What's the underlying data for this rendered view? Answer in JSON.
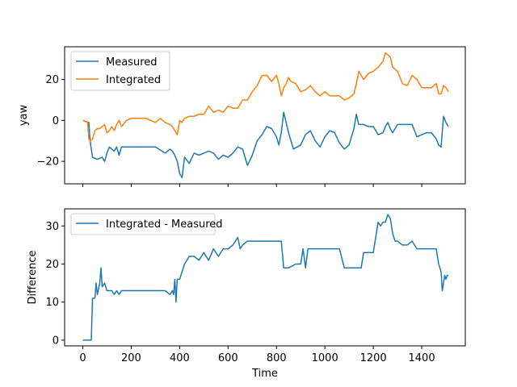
{
  "chart_data": [
    {
      "type": "line",
      "title": "",
      "xlabel": "",
      "ylabel": "yaw",
      "xlim": [
        -75,
        1580
      ],
      "ylim": [
        -31,
        36
      ],
      "x_ticks": [
        0,
        200,
        400,
        600,
        800,
        1000,
        1200,
        1400
      ],
      "y_ticks": [
        -20,
        0,
        20
      ],
      "x_tick_labels_visible": false,
      "grid": false,
      "legend_position": "top-left",
      "series": [
        {
          "name": "Measured",
          "color": "#1f77b4",
          "x": [
            0,
            25,
            30,
            40,
            60,
            80,
            90,
            100,
            110,
            120,
            130,
            140,
            150,
            160,
            180,
            200,
            220,
            250,
            300,
            340,
            360,
            370,
            380,
            390,
            400,
            410,
            420,
            440,
            460,
            480,
            500,
            520,
            540,
            560,
            580,
            600,
            620,
            640,
            660,
            680,
            700,
            720,
            740,
            760,
            780,
            800,
            810,
            820,
            830,
            850,
            870,
            900,
            920,
            940,
            960,
            980,
            1000,
            1020,
            1040,
            1060,
            1080,
            1100,
            1110,
            1120,
            1130,
            1140,
            1160,
            1180,
            1200,
            1220,
            1240,
            1250,
            1260,
            1270,
            1280,
            1300,
            1320,
            1340,
            1360,
            1380,
            1400,
            1420,
            1440,
            1460,
            1470,
            1480,
            1490,
            1500,
            1510
          ],
          "y": [
            0,
            -1,
            -10,
            -18,
            -19,
            -18,
            -20,
            -16,
            -13,
            -14,
            -15,
            -13,
            -17,
            -13,
            -13,
            -13,
            -13,
            -13,
            -13,
            -16,
            -14,
            -15,
            -17,
            -20,
            -26,
            -28,
            -18,
            -21,
            -16,
            -17,
            -16,
            -15,
            -16,
            -19,
            -17,
            -18,
            -16,
            -13,
            -14,
            -22,
            -17,
            -10,
            -7,
            -3,
            -4,
            -8,
            -12,
            -6,
            4,
            -6,
            -14,
            -12,
            -7,
            -5,
            -10,
            -13,
            -8,
            -5,
            -6,
            -11,
            -14,
            -12,
            -8,
            -4,
            3,
            -2,
            -2,
            -3,
            -3,
            -7,
            -6,
            -3,
            -1,
            -4,
            -6,
            -2,
            -2,
            -2,
            -2,
            -8,
            -7,
            -6,
            -6,
            -9,
            -12,
            -13,
            2,
            -1,
            -3
          ]
        },
        {
          "name": "Integrated",
          "color": "#ff7f0e",
          "x": [
            0,
            20,
            25,
            30,
            40,
            50,
            60,
            70,
            80,
            90,
            100,
            110,
            120,
            130,
            140,
            150,
            160,
            180,
            200,
            220,
            240,
            260,
            280,
            300,
            320,
            340,
            360,
            370,
            380,
            390,
            400,
            410,
            420,
            440,
            460,
            480,
            500,
            520,
            540,
            560,
            580,
            600,
            620,
            640,
            660,
            680,
            700,
            720,
            740,
            760,
            780,
            800,
            810,
            820,
            830,
            840,
            850,
            860,
            880,
            900,
            920,
            940,
            960,
            980,
            1000,
            1020,
            1040,
            1060,
            1080,
            1100,
            1110,
            1120,
            1130,
            1140,
            1160,
            1180,
            1200,
            1220,
            1240,
            1250,
            1260,
            1270,
            1280,
            1300,
            1320,
            1340,
            1360,
            1380,
            1400,
            1420,
            1440,
            1460,
            1470,
            1480,
            1490,
            1500,
            1510
          ],
          "y": [
            0,
            -1,
            -9,
            -10,
            -9,
            -5,
            -4,
            -4,
            -3,
            -2,
            -6,
            -5,
            -3,
            -5,
            -2,
            0,
            -3,
            0,
            1,
            1,
            1,
            1,
            0,
            -1,
            1,
            -1,
            -2,
            -3,
            -5,
            -7,
            0,
            -1,
            1,
            2,
            2,
            3,
            3,
            7,
            4,
            5,
            4,
            7,
            6,
            6,
            10,
            10,
            14,
            17,
            22,
            22,
            19,
            22,
            18,
            12,
            16,
            18,
            21,
            19,
            18,
            14,
            15,
            17,
            14,
            12,
            14,
            12,
            12,
            12,
            10,
            11,
            12,
            13,
            18,
            24,
            20,
            23,
            24,
            26,
            29,
            33,
            32,
            31,
            26,
            24,
            18,
            17,
            22,
            20,
            16,
            16,
            16,
            18,
            13,
            13,
            17,
            16,
            14
          ]
        }
      ]
    },
    {
      "type": "line",
      "title": "",
      "xlabel": "Time",
      "ylabel": "Difference",
      "xlim": [
        -75,
        1580
      ],
      "ylim": [
        -1.5,
        34.5
      ],
      "x_ticks": [
        0,
        200,
        400,
        600,
        800,
        1000,
        1200,
        1400
      ],
      "x_tick_labels": [
        "0",
        "200",
        "400",
        "600",
        "800",
        "1000",
        "1200",
        "1400"
      ],
      "y_ticks": [
        0,
        10,
        20,
        30
      ],
      "y_tick_labels": [
        "0",
        "10",
        "20",
        "30"
      ],
      "grid": false,
      "legend_position": "top-left",
      "series": [
        {
          "name": "Integrated - Measured",
          "color": "#1f77b4",
          "x": [
            0,
            20,
            25,
            30,
            35,
            40,
            50,
            55,
            60,
            70,
            75,
            80,
            90,
            100,
            110,
            120,
            130,
            140,
            150,
            160,
            180,
            200,
            250,
            300,
            340,
            360,
            370,
            375,
            380,
            385,
            390,
            400,
            410,
            420,
            440,
            460,
            480,
            500,
            520,
            540,
            560,
            580,
            600,
            620,
            640,
            650,
            660,
            680,
            700,
            750,
            780,
            800,
            810,
            820,
            830,
            850,
            880,
            900,
            910,
            920,
            930,
            940,
            960,
            980,
            1000,
            1020,
            1040,
            1060,
            1080,
            1100,
            1120,
            1150,
            1160,
            1170,
            1180,
            1200,
            1210,
            1220,
            1230,
            1240,
            1250,
            1260,
            1270,
            1280,
            1290,
            1300,
            1320,
            1340,
            1360,
            1380,
            1400,
            1420,
            1440,
            1460,
            1470,
            1480,
            1485,
            1490,
            1495,
            1500,
            1505,
            1510
          ],
          "y": [
            0,
            0,
            0,
            0,
            0,
            11,
            11,
            15,
            12,
            15,
            19,
            14,
            15,
            13,
            13,
            13,
            12,
            13,
            12,
            13,
            13,
            13,
            13,
            13,
            13,
            12,
            13,
            12,
            16,
            10,
            16,
            16,
            18,
            20,
            22,
            22,
            21,
            23,
            21,
            24,
            22,
            24,
            24,
            25,
            27,
            24,
            25,
            26,
            26,
            26,
            26,
            26,
            26,
            26,
            19,
            19,
            20,
            20,
            24,
            19,
            24,
            24,
            24,
            24,
            24,
            24,
            24,
            24,
            19,
            19,
            19,
            19,
            23,
            23,
            23,
            23,
            27,
            31,
            30,
            31,
            31,
            33,
            32,
            28,
            26,
            26,
            25,
            25,
            26,
            24,
            24,
            24,
            24,
            24,
            20,
            18,
            13,
            15,
            17,
            16,
            17,
            17
          ]
        }
      ]
    }
  ]
}
